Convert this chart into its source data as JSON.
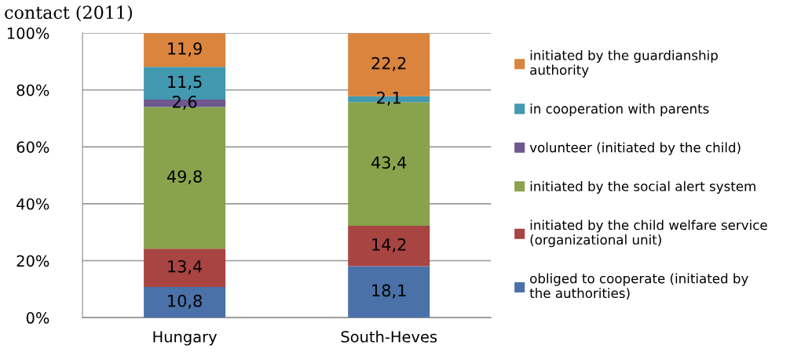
{
  "chart_data": {
    "type": "bar",
    "stacked": true,
    "title": "contact (2011)",
    "categories": [
      "Hungary",
      "South-Heves"
    ],
    "series": [
      {
        "name": "obliged to cooperate (initiated by\nthe authorities)",
        "color": "#4a72a8",
        "values": [
          10.8,
          18.1
        ],
        "value_labels": [
          "10,8",
          "18,1"
        ]
      },
      {
        "name": "initiated by the child welfare service\n(organizational unit)",
        "color": "#a84442",
        "values": [
          13.4,
          14.2
        ],
        "value_labels": [
          "13,4",
          "14,2"
        ]
      },
      {
        "name": "initiated by the social alert system",
        "color": "#89a34c",
        "values": [
          49.8,
          43.4
        ],
        "value_labels": [
          "49,8",
          "43,4"
        ]
      },
      {
        "name": "volunteer (initiated by the child)",
        "color": "#6f5790",
        "values": [
          2.6,
          null
        ],
        "value_labels": [
          "2,6",
          null
        ]
      },
      {
        "name": "in cooperation with parents",
        "color": "#4299b0",
        "values": [
          11.5,
          2.1
        ],
        "value_labels": [
          "11,5",
          "2,1"
        ]
      },
      {
        "name": "initiated by the guardianship\nauthority",
        "color": "#db843d",
        "values": [
          11.9,
          22.2
        ],
        "value_labels": [
          "11,9",
          "22,2"
        ]
      }
    ],
    "ylim": [
      0,
      100
    ],
    "yticks": [
      {
        "value": 0,
        "label": "0%"
      },
      {
        "value": 20,
        "label": "20%"
      },
      {
        "value": 40,
        "label": "40%"
      },
      {
        "value": 60,
        "label": "60%"
      },
      {
        "value": 80,
        "label": "80%"
      },
      {
        "value": 100,
        "label": "100%"
      }
    ],
    "grid": "y",
    "legend": "right"
  }
}
